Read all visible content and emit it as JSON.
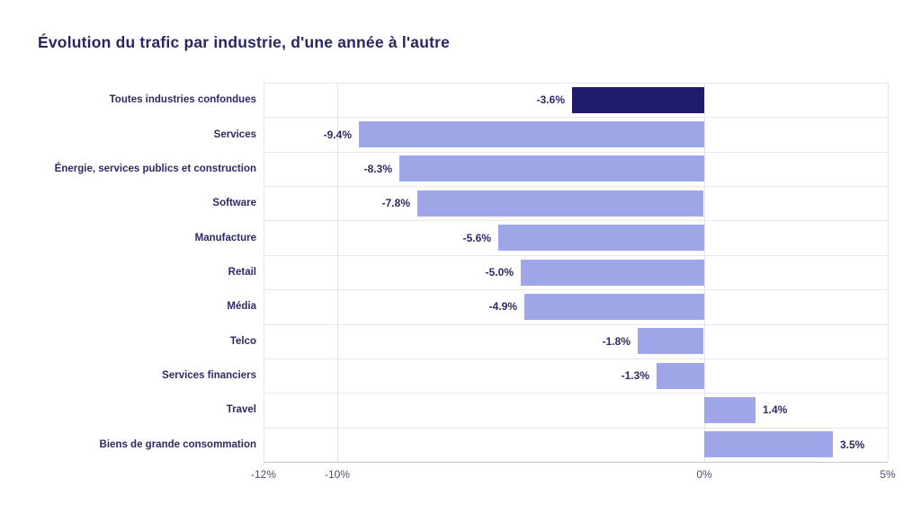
{
  "page": {
    "background": "#ffffff"
  },
  "chart_data": {
    "type": "bar",
    "orientation": "horizontal",
    "title": "Évolution du trafic par industrie, d'une année à l'autre",
    "categories": [
      "Toutes industries confondues",
      "Services",
      "Énergie, services publics et construction",
      "Software",
      "Manufacture",
      "Retail",
      "Média",
      "Telco",
      "Services financiers",
      "Travel",
      "Biens de grande consommation"
    ],
    "values": [
      -3.6,
      -9.4,
      -8.3,
      -7.8,
      -5.6,
      -5.0,
      -4.9,
      -1.8,
      -1.3,
      1.4,
      3.5
    ],
    "value_labels": [
      "-3.6%",
      "-9.4%",
      "-8.3%",
      "-7.8%",
      "-5.6%",
      "-5.0%",
      "-4.9%",
      "-1.8%",
      "-1.3%",
      "1.4%",
      "3.5%"
    ],
    "highlight_index": 0,
    "xlabel": "",
    "ylabel": "",
    "xlim": [
      -12,
      5
    ],
    "x_ticks": [
      {
        "value": -12,
        "label": "-12%"
      },
      {
        "value": -10,
        "label": "-10%"
      },
      {
        "value": 0,
        "label": "0%"
      },
      {
        "value": 5,
        "label": "5%"
      }
    ],
    "grid": true,
    "legend_position": "none",
    "colors": {
      "bar": "#9ea6e8",
      "bar_highlight": "#211b6e",
      "title_text": "#2a2663",
      "label_text": "#2d2a66",
      "tick_text": "#504e68",
      "gridline": "#e4e4e6",
      "axis_line": "#c6c6cc",
      "background": "#ffffff"
    }
  }
}
